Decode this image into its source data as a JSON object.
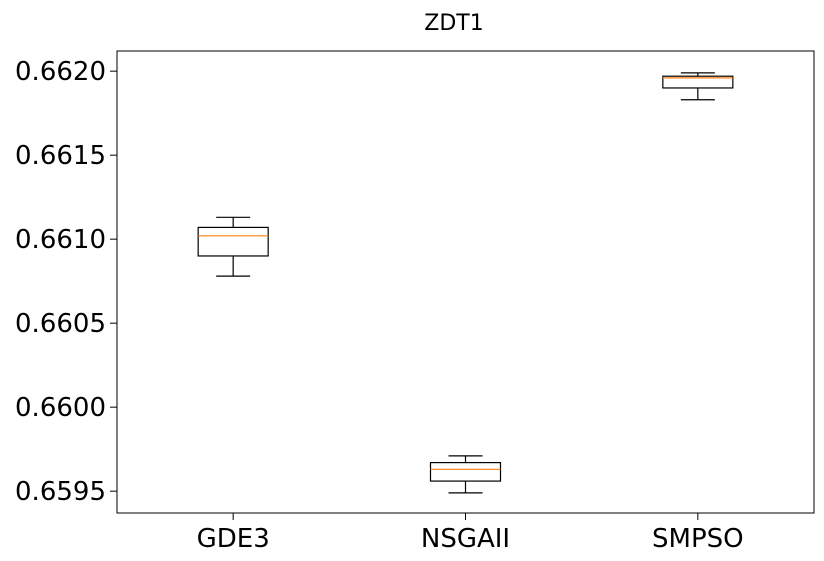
{
  "chart_data": {
    "type": "box",
    "title": "ZDT1",
    "xlabel": "",
    "ylabel": "",
    "categories": [
      "GDE3",
      "NSGAII",
      "SMPSO"
    ],
    "ylim": [
      0.65937,
      0.66212
    ],
    "yticks": [
      0.6595,
      0.66,
      0.6605,
      0.661,
      0.6615,
      0.662
    ],
    "ytick_labels": [
      "0.6595",
      "0.6600",
      "0.6605",
      "0.6610",
      "0.6615",
      "0.6620"
    ],
    "grid": false,
    "boxes": [
      {
        "name": "GDE3",
        "whisker_low": 0.66078,
        "q1": 0.6609,
        "median": 0.66102,
        "q3": 0.66107,
        "whisker_high": 0.66113
      },
      {
        "name": "NSGAII",
        "whisker_low": 0.65949,
        "q1": 0.65956,
        "median": 0.65963,
        "q3": 0.65967,
        "whisker_high": 0.65971
      },
      {
        "name": "SMPSO",
        "whisker_low": 0.66183,
        "q1": 0.6619,
        "median": 0.66196,
        "q3": 0.66197,
        "whisker_high": 0.66199
      }
    ],
    "colors": {
      "box": "#000000",
      "median": "#ff7f0e"
    }
  }
}
